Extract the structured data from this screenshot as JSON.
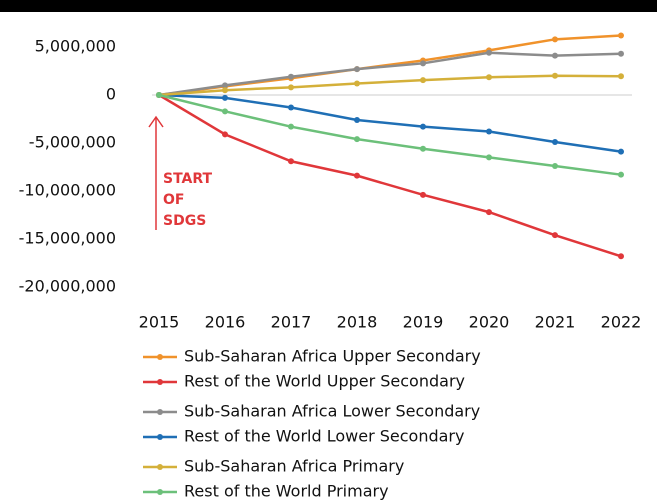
{
  "chart_data": {
    "type": "line",
    "categories": [
      "2015",
      "2016",
      "2017",
      "2018",
      "2019",
      "2020",
      "2021",
      "2022"
    ],
    "series": [
      {
        "name": "Sub-Saharan Africa Upper Secondary",
        "color": "#f0922b",
        "values": [
          0,
          900000,
          1750000,
          2700000,
          3600000,
          4650000,
          5800000,
          6200000
        ]
      },
      {
        "name": "Rest of the World Upper Secondary",
        "color": "#e0373a",
        "values": [
          0,
          -4100000,
          -6900000,
          -8400000,
          -10400000,
          -12200000,
          -14600000,
          -16800000
        ]
      },
      {
        "name": "Sub-Saharan Africa Lower Secondary",
        "color": "#8c8c8c",
        "values": [
          0,
          1000000,
          1900000,
          2700000,
          3300000,
          4400000,
          4100000,
          4300000
        ]
      },
      {
        "name": "Rest of the World Lower Secondary",
        "color": "#1f6fb5",
        "values": [
          0,
          -300000,
          -1300000,
          -2600000,
          -3300000,
          -3800000,
          -4900000,
          -5900000
        ]
      },
      {
        "name": "Sub-Saharan Africa Primary",
        "color": "#d4b03a",
        "values": [
          0,
          500000,
          800000,
          1200000,
          1550000,
          1850000,
          2000000,
          1950000
        ]
      },
      {
        "name": "Rest of the World Primary",
        "color": "#6cc07a",
        "values": [
          0,
          -1700000,
          -3300000,
          -4600000,
          -5600000,
          -6500000,
          -7400000,
          -8300000
        ]
      }
    ],
    "ylim": [
      -20000000,
      7000000
    ],
    "yticks": [
      {
        "value": 5000000,
        "label": "5,000,000"
      },
      0,
      {
        "value": -5000000,
        "label": "-5,000,000"
      },
      {
        "value": -10000000,
        "label": "-10,000,000"
      },
      {
        "value": -15000000,
        "label": "-15,000,000"
      },
      {
        "value": -20000000,
        "label": "-20,000,000"
      }
    ],
    "annotation": [
      "START",
      "OF",
      "SDGS"
    ],
    "annotation_color": "#e0373a"
  }
}
